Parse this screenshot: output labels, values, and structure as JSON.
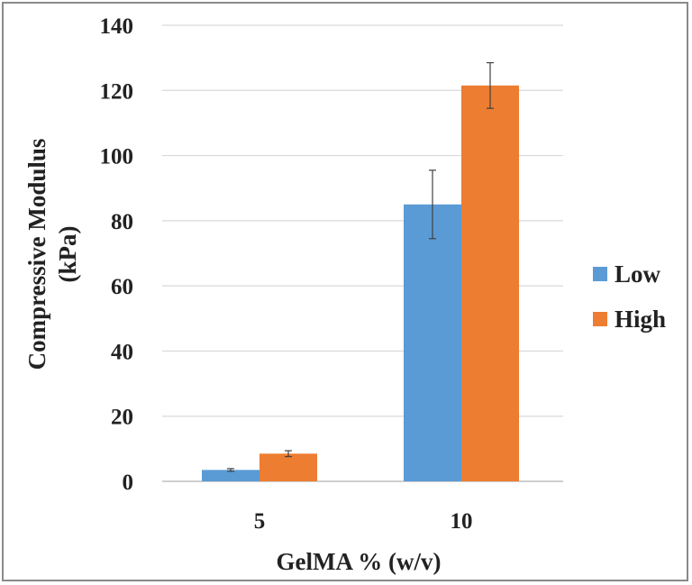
{
  "chart_data": {
    "type": "bar",
    "categories": [
      "5",
      "10"
    ],
    "series": [
      {
        "name": "Low",
        "color": "#5b9bd5",
        "values": [
          3.5,
          85
        ],
        "errors": [
          0.4,
          10.5
        ]
      },
      {
        "name": "High",
        "color": "#ed7d31",
        "values": [
          8.5,
          121.5
        ],
        "errors": [
          0.9,
          7
        ]
      }
    ],
    "xlabel": "GelMA % (w/v)",
    "ylabel_lines": [
      "Compressive Modulus",
      "(kPa)"
    ],
    "ylim": [
      0,
      140
    ],
    "yticks": [
      "0",
      "20",
      "40",
      "60",
      "80",
      "100",
      "120",
      "140"
    ],
    "grid": true,
    "legend_position": "right",
    "colors": {
      "gridline": "#d9d9d9",
      "axis": "#bfbfbf",
      "error_bar": "#404040",
      "frame": "#8a8a8a"
    }
  }
}
